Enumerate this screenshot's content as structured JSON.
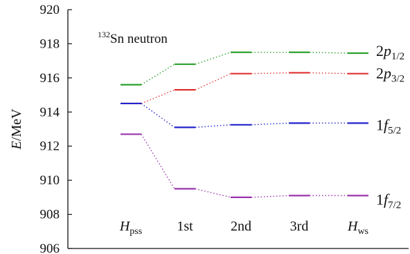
{
  "chart_data": {
    "type": "line",
    "annotation": {
      "superscript": "132",
      "text": "Sn neutron"
    },
    "ylabel": {
      "italic": "E",
      "rest": "/MeV"
    },
    "ylim": [
      906,
      920
    ],
    "yticks": [
      "906",
      "908",
      "910",
      "912",
      "914",
      "916",
      "918",
      "920"
    ],
    "categories": [
      {
        "main": "H",
        "sub": "pss",
        "italic": true
      },
      {
        "main": "1st",
        "sub": "",
        "italic": false
      },
      {
        "main": "2nd",
        "sub": "",
        "italic": false
      },
      {
        "main": "3rd",
        "sub": "",
        "italic": false
      },
      {
        "main": "H",
        "sub": "ws",
        "italic": true
      }
    ],
    "series": [
      {
        "name": "2p1/2",
        "label": {
          "n": "2",
          "l": "p",
          "j": "1/2"
        },
        "color": "#2ca02c",
        "values": [
          915.6,
          916.8,
          917.5,
          917.5,
          917.45
        ]
      },
      {
        "name": "2p3/2",
        "label": {
          "n": "2",
          "l": "p",
          "j": "3/2"
        },
        "color": "#e03030",
        "values": [
          914.5,
          915.3,
          916.25,
          916.3,
          916.25
        ]
      },
      {
        "name": "1f5/2",
        "label": {
          "n": "1",
          "l": "f",
          "j": "5/2"
        },
        "color": "#2222cc",
        "values": [
          914.5,
          913.1,
          913.25,
          913.35,
          913.35
        ]
      },
      {
        "name": "1f7/2",
        "label": {
          "n": "1",
          "l": "f",
          "j": "7/2"
        },
        "color": "#9933aa",
        "values": [
          912.7,
          909.5,
          909.0,
          909.1,
          909.1
        ]
      }
    ]
  }
}
